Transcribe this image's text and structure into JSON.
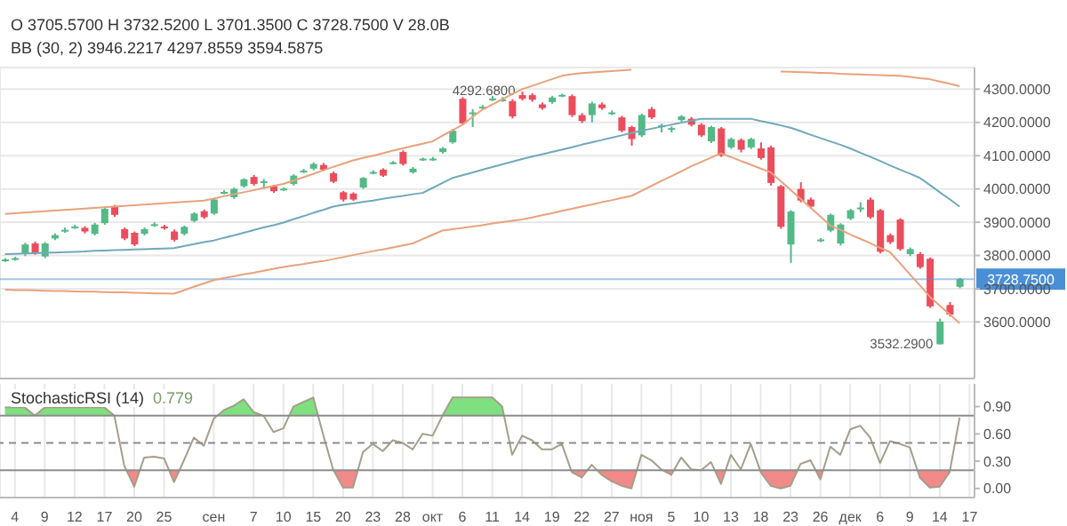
{
  "chart_data": [
    {
      "type": "candlestick",
      "categories": [
        null,
        null,
        null,
        null,
        null,
        null,
        null,
        null,
        null,
        null,
        null,
        null,
        null,
        null,
        null,
        null,
        null,
        null,
        null,
        null,
        null,
        null,
        null,
        null,
        null,
        null,
        null,
        null,
        null,
        null,
        null,
        null,
        null,
        null,
        null,
        null,
        null,
        null,
        null,
        null,
        null,
        null,
        null,
        null,
        null,
        null,
        null,
        null,
        null,
        null,
        null,
        null,
        null,
        null,
        null,
        null,
        null,
        null,
        null,
        null,
        null,
        null,
        null,
        null,
        null,
        null,
        null,
        null,
        null,
        null,
        null,
        null,
        null,
        null,
        null,
        null,
        null,
        null,
        null,
        null,
        null,
        null,
        null,
        null,
        null,
        null,
        null,
        null,
        null,
        null,
        null,
        null,
        null,
        null,
        null,
        null,
        null,
        null
      ],
      "ohlc": [
        [
          3784,
          3792,
          3780,
          3788
        ],
        [
          3790,
          3796,
          3784,
          3792
        ],
        [
          3804,
          3838,
          3798,
          3833
        ],
        [
          3836,
          3842,
          3802,
          3808
        ],
        [
          3797,
          3840,
          3792,
          3836
        ],
        [
          3851,
          3866,
          3846,
          3861
        ],
        [
          3874,
          3884,
          3868,
          3877
        ],
        [
          3885,
          3892,
          3880,
          3887
        ],
        [
          3883,
          3888,
          3866,
          3872
        ],
        [
          3865,
          3898,
          3860,
          3893
        ],
        [
          3897,
          3944,
          3892,
          3940
        ],
        [
          3947,
          3952,
          3916,
          3922
        ],
        [
          3879,
          3884,
          3846,
          3851
        ],
        [
          3868,
          3872,
          3828,
          3833
        ],
        [
          3865,
          3884,
          3860,
          3879
        ],
        [
          3892,
          3900,
          3886,
          3894
        ],
        [
          3887,
          3892,
          3878,
          3885
        ],
        [
          3872,
          3878,
          3842,
          3847
        ],
        [
          3865,
          3890,
          3860,
          3886
        ],
        [
          3904,
          3930,
          3900,
          3926
        ],
        [
          3933,
          3938,
          3910,
          3915
        ],
        [
          3926,
          3972,
          3922,
          3968
        ],
        [
          3988,
          3996,
          3984,
          3991
        ],
        [
          3975,
          4004,
          3970,
          4000
        ],
        [
          4008,
          4032,
          4004,
          4029
        ],
        [
          4036,
          4042,
          4010,
          4015
        ],
        [
          4021,
          4030,
          4000,
          4023
        ],
        [
          4008,
          4012,
          3988,
          3993
        ],
        [
          3999,
          4004,
          3994,
          4001
        ],
        [
          4015,
          4044,
          4010,
          4040
        ],
        [
          4053,
          4060,
          4048,
          4055
        ],
        [
          4061,
          4080,
          4056,
          4075
        ],
        [
          4072,
          4078,
          4054,
          4058
        ],
        [
          4047,
          4052,
          4018,
          4022
        ],
        [
          3990,
          3994,
          3962,
          3968
        ],
        [
          3986,
          3990,
          3964,
          3968
        ],
        [
          4004,
          4036,
          4000,
          4033
        ],
        [
          4049,
          4056,
          4044,
          4051
        ],
        [
          4058,
          4062,
          4036,
          4040
        ],
        [
          4078,
          4084,
          4074,
          4080
        ],
        [
          4111,
          4116,
          4070,
          4075
        ],
        [
          4050,
          4066,
          4046,
          4061
        ],
        [
          4089,
          4094,
          4084,
          4091
        ],
        [
          4089,
          4096,
          4084,
          4091
        ],
        [
          4111,
          4126,
          4106,
          4122
        ],
        [
          4140,
          4180,
          4136,
          4175
        ],
        [
          4271,
          4276,
          4192,
          4197
        ],
        [
          4228,
          4240,
          4186,
          4230
        ],
        [
          4245,
          4252,
          4240,
          4247
        ],
        [
          4270,
          4280,
          4264,
          4272
        ],
        [
          4267,
          4276,
          4262,
          4269
        ],
        [
          4264,
          4270,
          4212,
          4218
        ],
        [
          4282,
          4292.68,
          4266,
          4271
        ],
        [
          4282,
          4288,
          4262,
          4268
        ],
        [
          4254,
          4260,
          4238,
          4243
        ],
        [
          4261,
          4280,
          4256,
          4275
        ],
        [
          4281,
          4286,
          4276,
          4283
        ],
        [
          4279,
          4284,
          4216,
          4222
        ],
        [
          4222,
          4228,
          4198,
          4204
        ],
        [
          4222,
          4262,
          4200,
          4257
        ],
        [
          4254,
          4260,
          4238,
          4243
        ],
        [
          4228,
          4236,
          4222,
          4230
        ],
        [
          4215,
          4220,
          4170,
          4175
        ],
        [
          4186,
          4190,
          4130,
          4150
        ],
        [
          4161,
          4226,
          4156,
          4222
        ],
        [
          4240,
          4246,
          4210,
          4215
        ],
        [
          4189,
          4196,
          4170,
          4191
        ],
        [
          4181,
          4188,
          4170,
          4183
        ],
        [
          4207,
          4222,
          4202,
          4218
        ],
        [
          4211,
          4216,
          4188,
          4193
        ],
        [
          4193,
          4198,
          4156,
          4161
        ],
        [
          4143,
          4190,
          4138,
          4186
        ],
        [
          4182,
          4186,
          4096,
          4100
        ],
        [
          4125,
          4154,
          4120,
          4150
        ],
        [
          4147,
          4152,
          4110,
          4118
        ],
        [
          4125,
          4154,
          4120,
          4150
        ],
        [
          4122,
          4140,
          4088,
          4093
        ],
        [
          4125,
          4130,
          4010,
          4018
        ],
        [
          4008,
          4012,
          3880,
          3886
        ],
        [
          3833,
          3936,
          3778,
          3932
        ],
        [
          4000,
          4020,
          3960,
          3965
        ],
        [
          3968,
          3974,
          3940,
          3947
        ],
        [
          3846,
          3852,
          3840,
          3848
        ],
        [
          3875,
          3926,
          3870,
          3922
        ],
        [
          3836,
          3897,
          3830,
          3893
        ],
        [
          3911,
          3940,
          3906,
          3936
        ],
        [
          3942,
          3960,
          3930,
          3944
        ],
        [
          3968,
          3974,
          3910,
          3915
        ],
        [
          3936,
          3940,
          3806,
          3811
        ],
        [
          3861,
          3866,
          3834,
          3840
        ],
        [
          3908,
          3912,
          3814,
          3819
        ],
        [
          3804,
          3824,
          3798,
          3819
        ],
        [
          3804,
          3810,
          3760,
          3765
        ],
        [
          3790,
          3794,
          3642,
          3647
        ],
        [
          3533,
          3610,
          3532.29,
          3601
        ],
        [
          3651,
          3660,
          3616,
          3622
        ],
        [
          3705.57,
          3732.52,
          3701.35,
          3728.75
        ],
        null
      ],
      "series": [
        {
          "type": "line",
          "color": "#e8a27c",
          "values": [
            3925,
            3927,
            3929,
            3931,
            3933,
            3935,
            3937,
            3939,
            3941,
            3943,
            3945,
            3947,
            3949,
            3951,
            3953,
            3955,
            3957,
            3959,
            3961,
            3963,
            3965,
            3971,
            3978,
            3984,
            3990,
            3996,
            4003,
            4009,
            4015,
            4025,
            4035,
            4045,
            4056,
            4066,
            4076,
            4086,
            4093,
            4100,
            4107,
            4115,
            4122,
            4129,
            4136,
            4143,
            4160,
            4176,
            4193,
            4216,
            4238,
            4254,
            4269,
            4285,
            4300,
            4310,
            4320,
            4330,
            4340,
            4345,
            4348,
            4350,
            4352,
            4354,
            4356,
            4358,
            null,
            null,
            null,
            null,
            null,
            null,
            null,
            null,
            null,
            null,
            null,
            null,
            null,
            null,
            4353,
            4352,
            4351,
            4350,
            4349,
            4348,
            4346,
            4345,
            4344,
            4343,
            4342,
            4341,
            4340,
            4337,
            4333,
            4330,
            4323,
            4316,
            4309,
            null
          ]
        },
        {
          "type": "line",
          "color": "#70a9b9",
          "values": [
            3804,
            3805,
            3806,
            3807,
            3808,
            3809,
            3810,
            3811,
            3812,
            3814,
            3815,
            3816,
            3817,
            3818,
            3819,
            3820,
            3821,
            3822,
            3828,
            3834,
            3840,
            3845,
            3853,
            3860,
            3868,
            3876,
            3884,
            3891,
            3899,
            3909,
            3918,
            3928,
            3937,
            3947,
            3952,
            3956,
            3961,
            3965,
            3970,
            3975,
            3979,
            3984,
            3988,
            4003,
            4018,
            4033,
            4041,
            4049,
            4058,
            4066,
            4074,
            4082,
            4090,
            4097,
            4104,
            4111,
            4118,
            4125,
            4133,
            4140,
            4147,
            4154,
            4161,
            4168,
            4175,
            4181,
            4187,
            4193,
            4199,
            4205,
            4211,
            4211,
            4211,
            4211,
            4211,
            4211,
            4204,
            4198,
            4191,
            4184,
            4174,
            4163,
            4153,
            4143,
            4133,
            4122,
            4109,
            4097,
            4084,
            4071,
            4058,
            4046,
            4033,
            4012,
            3990,
            3969,
            3947,
            null
          ]
        },
        {
          "type": "line",
          "color": "#e8a27c",
          "values": [
            3697,
            3696,
            3696,
            3695,
            3694,
            3693,
            3693,
            3692,
            3691,
            3691,
            3690,
            3689,
            3689,
            3688,
            3687,
            3686,
            3686,
            3685,
            3695,
            3706,
            3716,
            3726,
            3732,
            3737,
            3743,
            3748,
            3754,
            3760,
            3765,
            3770,
            3774,
            3779,
            3783,
            3789,
            3795,
            3801,
            3807,
            3813,
            3818,
            3824,
            3830,
            3836,
            3849,
            3862,
            3875,
            3879,
            3883,
            3887,
            3891,
            3896,
            3900,
            3904,
            3908,
            3914,
            3921,
            3927,
            3934,
            3940,
            3947,
            3953,
            3960,
            3966,
            3973,
            3979,
            3994,
            4009,
            4024,
            4038,
            4053,
            4068,
            4081,
            4094,
            4107,
            4096,
            4084,
            4073,
            4061,
            4050,
            4024,
            3997,
            3970,
            3944,
            3917,
            3890,
            3877,
            3863,
            3850,
            3837,
            3823,
            3810,
            3777,
            3743,
            3710,
            3676,
            3649,
            3623,
            3596,
            null
          ]
        }
      ],
      "ylim": [
        3430,
        4365
      ],
      "yticks": [
        {
          "value": 3600,
          "label": "3600.0000"
        },
        {
          "value": 3700,
          "label": "3700.0000"
        },
        {
          "value": 3800,
          "label": "3800.0000"
        },
        {
          "value": 3900,
          "label": "3900.0000"
        },
        {
          "value": 4000,
          "label": "4000.0000"
        },
        {
          "value": 4100,
          "label": "4100.0000"
        },
        {
          "value": 4200,
          "label": "4200.0000"
        },
        {
          "value": 4300,
          "label": "4300.0000"
        }
      ],
      "tick_labels": "y",
      "grid": true,
      "ref_lines": [
        {
          "axis": "y",
          "value": 3728.75,
          "label": "3728.7500",
          "color": "#4a8fd6"
        }
      ],
      "annotations": [
        "O 3705.5700 H 3732.5200 L 3701.3500 C 3728.7500 V 28.0B",
        "BB (30, 2) 3946.2217 4297.8559 3594.5875",
        {
          "text": "4292.6800",
          "y": 4292.68
        },
        "3532.2900"
      ]
    },
    {
      "type": "line",
      "categories": [
        null,
        "4",
        null,
        null,
        "9",
        null,
        null,
        "12",
        null,
        null,
        "17",
        null,
        null,
        "20",
        null,
        null,
        "25",
        null,
        null,
        null,
        null,
        "сен",
        null,
        null,
        null,
        "7",
        null,
        null,
        "10",
        null,
        null,
        "15",
        null,
        null,
        "20",
        null,
        null,
        "23",
        null,
        null,
        "28",
        null,
        null,
        "окт",
        null,
        null,
        "6",
        null,
        null,
        "11",
        null,
        null,
        "14",
        null,
        null,
        "19",
        null,
        null,
        "22",
        null,
        null,
        "27",
        null,
        null,
        "ноя",
        null,
        null,
        "5",
        null,
        null,
        "10",
        null,
        null,
        "13",
        null,
        null,
        "18",
        null,
        null,
        "23",
        null,
        null,
        "26",
        null,
        null,
        "дек",
        null,
        null,
        "6",
        null,
        null,
        "9",
        null,
        null,
        "14",
        null,
        null,
        "17"
      ],
      "values": [
        0.89,
        0.89,
        0.89,
        0.8,
        0.89,
        0.89,
        0.89,
        0.89,
        0.89,
        0.89,
        0.89,
        0.8,
        0.25,
        0.02,
        0.34,
        0.35,
        0.33,
        0.07,
        0.31,
        0.56,
        0.47,
        0.77,
        0.86,
        0.91,
        0.98,
        0.84,
        0.8,
        0.62,
        0.66,
        0.9,
        0.95,
        1,
        0.59,
        0.21,
        0.01,
        0.01,
        0.4,
        0.49,
        0.41,
        0.53,
        0.5,
        0.43,
        0.6,
        0.58,
        0.8,
        1,
        1,
        1,
        1,
        1,
        0.9,
        0.37,
        0.58,
        0.53,
        0.43,
        0.43,
        0.49,
        0.18,
        0.12,
        0.26,
        0.15,
        0.08,
        0.03,
        0,
        0.37,
        0.31,
        0.21,
        0.15,
        0.34,
        0.21,
        0.2,
        0.29,
        0.05,
        0.37,
        0.21,
        0.49,
        0.18,
        0.03,
        0,
        0.03,
        0.27,
        0.31,
        0.1,
        0.46,
        0.37,
        0.65,
        0.69,
        0.56,
        0.28,
        0.52,
        0.49,
        0.45,
        0.12,
        0.01,
        0.02,
        0.18,
        0.779,
        null
      ],
      "color": "#a59e8a",
      "ylim": [
        -0.1,
        1.15
      ],
      "yticks": [
        {
          "value": 0,
          "label": "0.00"
        },
        {
          "value": 0.3,
          "label": "0.30"
        },
        {
          "value": 0.6,
          "label": "0.60"
        },
        {
          "value": 0.9,
          "label": "0.90"
        }
      ],
      "grid": "x",
      "ref_lines": [
        {
          "axis": "y",
          "value": 0.8,
          "color": "#8c8c8c"
        },
        {
          "axis": "y",
          "value": 0.5,
          "color": "#8c8c8c",
          "line_style": "dashed"
        },
        {
          "axis": "y",
          "value": 0.2,
          "color": "#8c8c8c"
        }
      ],
      "annotations": [
        "StochasticRSI (14)",
        "0.779"
      ]
    }
  ]
}
